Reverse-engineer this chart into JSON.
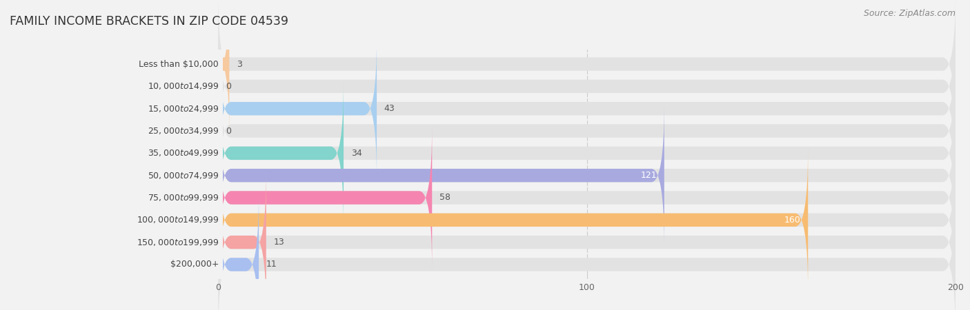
{
  "title": "FAMILY INCOME BRACKETS IN ZIP CODE 04539",
  "source": "Source: ZipAtlas.com",
  "categories": [
    "Less than $10,000",
    "$10,000 to $14,999",
    "$15,000 to $24,999",
    "$25,000 to $34,999",
    "$35,000 to $49,999",
    "$50,000 to $74,999",
    "$75,000 to $99,999",
    "$100,000 to $149,999",
    "$150,000 to $199,999",
    "$200,000+"
  ],
  "values": [
    3,
    0,
    43,
    0,
    34,
    121,
    58,
    160,
    13,
    11
  ],
  "bar_colors": [
    "#f7c99e",
    "#f5a3a3",
    "#a8cff0",
    "#ccaadf",
    "#82d4cc",
    "#a8aadf",
    "#f585b0",
    "#f7bc72",
    "#f5a3a3",
    "#a8bff0"
  ],
  "bg_color": "#f2f2f2",
  "bar_bg_color": "#e2e2e2",
  "xlim": [
    0,
    200
  ],
  "xticks": [
    0,
    100,
    200
  ],
  "title_fontsize": 12.5,
  "label_fontsize": 9,
  "value_fontsize": 9,
  "source_fontsize": 9
}
